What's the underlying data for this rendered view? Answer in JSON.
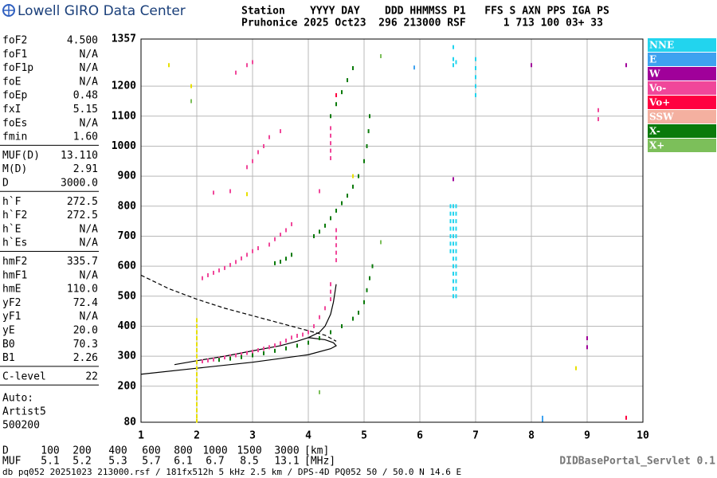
{
  "header": {
    "logo": "Lowell GIRO Data Center",
    "line1": "Station    YYYY DAY    DDD HHMMSS P1   FFS S AXN PPS IGA PS",
    "line2": "Pruhonice 2025 Oct23  296 213000 RSF      1 713 100 03+ 33"
  },
  "params": [
    [
      [
        "foF2",
        "4.500"
      ],
      [
        "foF1",
        "N/A"
      ],
      [
        "foF1p",
        "N/A"
      ],
      [
        "foE",
        "N/A"
      ],
      [
        "foEp",
        "0.48"
      ],
      [
        "fxI",
        "5.15"
      ],
      [
        "foEs",
        "N/A"
      ],
      [
        "fmin",
        "1.60"
      ]
    ],
    [
      [
        "MUF(D)",
        "13.110"
      ],
      [
        "M(D)",
        "2.91"
      ],
      [
        "D",
        "3000.0"
      ]
    ],
    [
      [
        "h`F",
        "272.5"
      ],
      [
        "h`F2",
        "272.5"
      ],
      [
        "h`E",
        "N/A"
      ],
      [
        "h`Es",
        "N/A"
      ]
    ],
    [
      [
        "hmF2",
        "335.7"
      ],
      [
        "hmF1",
        "N/A"
      ],
      [
        "hmE",
        "110.0"
      ],
      [
        "yF2",
        "72.4"
      ],
      [
        "yF1",
        "N/A"
      ],
      [
        "yE",
        "20.0"
      ],
      [
        "B0",
        "70.3"
      ],
      [
        "B1",
        "2.26"
      ]
    ],
    [
      [
        "C-level",
        "22"
      ]
    ]
  ],
  "auto": [
    "Auto:",
    "Artist5",
    "500200"
  ],
  "chart_data": {
    "type": "scatter",
    "xlim": [
      1,
      10
    ],
    "xticks": [
      1,
      2,
      3,
      4,
      5,
      6,
      7,
      8,
      9,
      10
    ],
    "ylim": [
      80,
      1357
    ],
    "yticks": [
      80,
      200,
      300,
      400,
      500,
      600,
      700,
      800,
      900,
      1000,
      1100,
      1200,
      1357
    ],
    "grid": true,
    "series": [
      {
        "name": "NNE",
        "color": "#22d4ee",
        "x": [
          6.6,
          6.6,
          6.6,
          6.6,
          6.6,
          6.6,
          6.6,
          6.6,
          6.6,
          6.6,
          6.6,
          6.6,
          6.6,
          6.65,
          6.65,
          6.65,
          6.65,
          6.65,
          6.65,
          6.65,
          6.65,
          6.65,
          6.65,
          6.65,
          6.65,
          6.65,
          6.55,
          6.55,
          6.55,
          6.55,
          6.55,
          6.55,
          6.55,
          7.0,
          7.0,
          7.0,
          7.0,
          7.0,
          6.6,
          6.6,
          6.6,
          6.65
        ],
        "values": [
          500,
          525,
          550,
          575,
          600,
          625,
          650,
          675,
          700,
          725,
          750,
          775,
          800,
          500,
          525,
          550,
          575,
          600,
          625,
          650,
          675,
          700,
          725,
          750,
          775,
          800,
          650,
          675,
          700,
          725,
          750,
          775,
          800,
          1170,
          1200,
          1230,
          1260,
          1290,
          1270,
          1290,
          1330,
          1280
        ]
      },
      {
        "name": "E",
        "color": "#3ea2f0",
        "x": [
          5.9,
          8.2,
          8.2
        ],
        "values": [
          1262,
          88,
          95
        ]
      },
      {
        "name": "W",
        "color": "#a0009a",
        "x": [
          9.0,
          9.0,
          6.6,
          9.7,
          8.0
        ],
        "values": [
          360,
          330,
          890,
          1270,
          1270
        ]
      },
      {
        "name": "Vo-",
        "color": "#f0479a",
        "x": [
          2.0,
          2.1,
          2.2,
          2.3,
          2.4,
          2.5,
          2.6,
          2.7,
          2.8,
          2.9,
          3.0,
          3.1,
          3.2,
          3.3,
          3.4,
          3.5,
          3.6,
          3.7,
          3.8,
          3.9,
          4.0,
          4.1,
          4.2,
          4.3,
          4.4,
          4.4,
          4.4,
          4.5,
          4.5,
          4.5,
          4.5,
          4.5,
          4.4,
          4.4,
          4.4,
          4.4,
          4.4,
          2.1,
          2.2,
          2.3,
          2.4,
          2.5,
          2.6,
          2.7,
          2.8,
          2.9,
          3.0,
          3.1,
          3.3,
          3.4,
          3.5,
          3.6,
          3.7,
          2.6,
          2.9,
          3.0,
          3.1,
          3.2,
          3.3,
          3.5,
          2.3,
          2.7,
          2.9,
          3.0,
          9.2,
          9.2,
          4.2
        ],
        "values": [
          280,
          283,
          286,
          289,
          292,
          296,
          300,
          303,
          307,
          311,
          315,
          320,
          325,
          330,
          336,
          343,
          352,
          362,
          368,
          372,
          380,
          400,
          430,
          460,
          490,
          515,
          540,
          620,
          645,
          670,
          695,
          720,
          960,
          985,
          1010,
          1035,
          1060,
          560,
          570,
          578,
          586,
          594,
          604,
          614,
          626,
          638,
          650,
          660,
          672,
          690,
          705,
          720,
          740,
          850,
          930,
          950,
          980,
          1000,
          1030,
          1050,
          845,
          1245,
          1270,
          1280,
          1120,
          1090,
          850
        ]
      },
      {
        "name": "Vo+",
        "color": "#ff0040",
        "x": [
          9.7,
          4.5
        ],
        "values": [
          95,
          1170
        ]
      },
      {
        "name": "SSW",
        "color": "#f4b0a0",
        "x": [],
        "values": []
      },
      {
        "name": "X-",
        "color": "#0a7a0a",
        "x": [
          2.4,
          2.6,
          2.8,
          3.0,
          3.2,
          3.4,
          3.6,
          3.8,
          4.0,
          4.2,
          4.4,
          4.6,
          4.8,
          4.9,
          5.0,
          5.05,
          5.1,
          5.15,
          3.4,
          3.5,
          3.6,
          3.7,
          4.1,
          4.2,
          4.3,
          4.4,
          4.5,
          4.6,
          4.7,
          4.8,
          4.9,
          5.0,
          5.05,
          5.08,
          5.1,
          4.4,
          4.5,
          4.6,
          4.7,
          4.8
        ],
        "values": [
          288,
          292,
          297,
          303,
          310,
          318,
          326,
          335,
          345,
          360,
          380,
          400,
          425,
          445,
          480,
          520,
          560,
          600,
          610,
          615,
          625,
          638,
          700,
          715,
          735,
          760,
          785,
          810,
          835,
          865,
          900,
          950,
          1000,
          1050,
          1100,
          1100,
          1140,
          1180,
          1220,
          1260
        ]
      },
      {
        "name": "X+",
        "color": "#7cbf5a",
        "x": [
          5.3,
          4.2,
          1.9,
          5.3
        ],
        "values": [
          680,
          180,
          1150,
          1300
        ]
      },
      {
        "color": "#e8e000",
        "x": [
          2.0,
          2.0,
          2.0,
          2.0,
          2.0,
          2.0,
          2.0,
          2.0,
          2.0,
          2.0,
          2.0,
          2.0,
          2.0,
          2.0,
          2.0,
          2.0,
          2.0,
          2.0,
          1.5,
          1.9,
          2.9,
          4.8,
          8.8
        ],
        "values": [
          85,
          100,
          120,
          140,
          160,
          180,
          200,
          220,
          240,
          260,
          280,
          300,
          320,
          340,
          360,
          380,
          400,
          420,
          1270,
          1200,
          840,
          900,
          260
        ]
      }
    ],
    "lines": [
      {
        "color": "#000",
        "x": [
          1.6,
          2.0,
          2.5,
          3.0,
          3.5,
          3.8,
          4.0,
          4.2,
          4.3,
          4.4,
          4.45,
          4.5
        ],
        "values": [
          272,
          285,
          300,
          318,
          335,
          350,
          362,
          380,
          400,
          440,
          480,
          540
        ]
      },
      {
        "color": "#000",
        "x": [
          1.0,
          2.0,
          3.0,
          4.0,
          4.4,
          4.5,
          4.45,
          4.3,
          4.0
        ],
        "values": [
          240,
          260,
          280,
          305,
          325,
          335,
          345,
          355,
          362
        ]
      },
      {
        "color": "#000",
        "dash": true,
        "x": [
          1.0,
          1.5,
          2.0,
          2.5,
          3.0,
          3.5,
          4.0,
          4.3,
          4.5
        ],
        "values": [
          570,
          525,
          490,
          460,
          435,
          410,
          385,
          370,
          350
        ]
      }
    ]
  },
  "footer": {
    "d_label": "D",
    "d_values": [
      "100",
      "200",
      "400",
      "600",
      "800",
      "1000",
      "1500",
      "3000"
    ],
    "d_unit": "[km]",
    "muf_label": "MUF",
    "muf_values": [
      "5.1",
      "5.2",
      "5.3",
      "5.7",
      "6.1",
      "6.7",
      "8.5",
      "13.1"
    ],
    "muf_unit": "[MHz]",
    "portal": "DIDBasePortal_Servlet 0.1",
    "file": "db pq052 20251023 213000.rsf / 181fx512h 5 kHz 2.5 km / DPS-4D PQ052 50 / 50.0 N 14.6 E"
  }
}
